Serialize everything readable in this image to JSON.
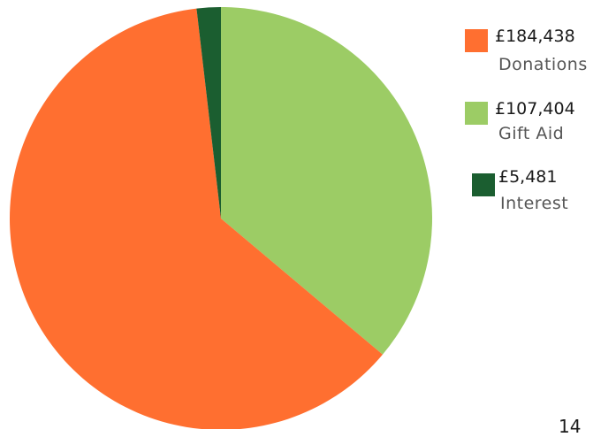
{
  "chart_data": {
    "type": "pie",
    "categories": [
      "Donations",
      "Gift Aid",
      "Interest"
    ],
    "values": [
      184438,
      107404,
      5481
    ],
    "value_labels": [
      "£184,438",
      "£107,404",
      "£5,481"
    ],
    "colors": [
      "#ff6f30",
      "#9ccc65",
      "#1b5e30"
    ],
    "legend_position": "right"
  },
  "legend": {
    "items": [
      {
        "value": "£184,438",
        "name": "Donations",
        "color": "#ff6f30"
      },
      {
        "value": "£107,404",
        "name": "Gift Aid",
        "color": "#9ccc65"
      },
      {
        "value": "£5,481",
        "name": "Interest",
        "color": "#1b5e30"
      }
    ]
  },
  "page_number": "14"
}
